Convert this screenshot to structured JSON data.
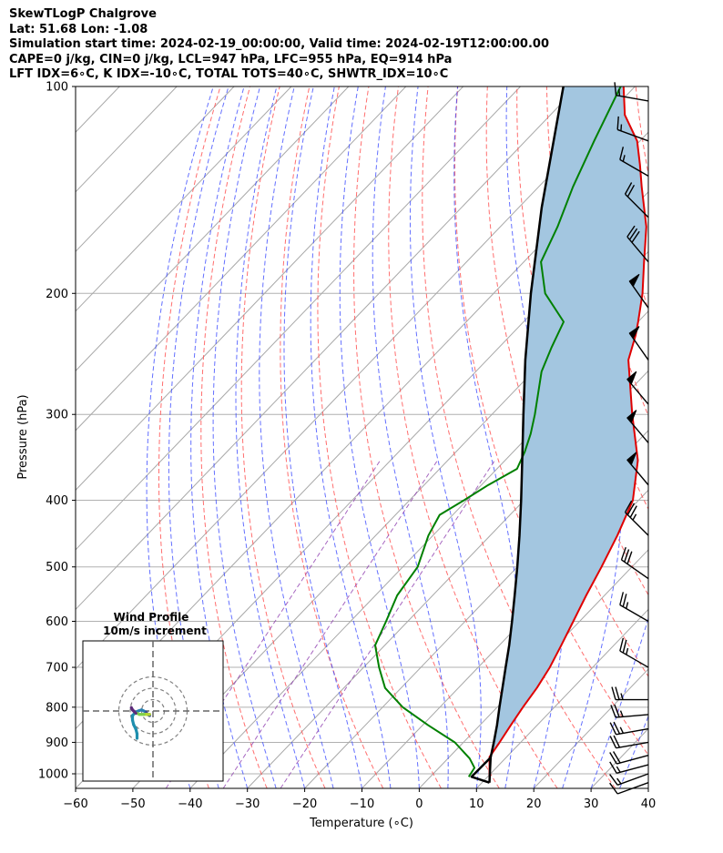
{
  "header": {
    "line1": "SkewTLogP Chalgrove",
    "line2": "Lat: 51.68   Lon: -1.08",
    "line3": "Simulation start time: 2024-02-19_00:00:00, Valid time: 2024-02-19T12:00:00.00",
    "line4": "CAPE=0 j/kg, CIN=0 j/kg, LCL=947 hPa, LFC=955 hPa, EQ=914 hPa",
    "line5": "LFT IDX=6∘C, K IDX=-10∘C, TOTAL TOTS=40∘C, SHWTR_IDX=10∘C"
  },
  "chart_data": [
    {
      "type": "skewt",
      "xlabel": "Temperature (∘C)",
      "ylabel": "Pressure (hPa)",
      "xlim": [
        -60,
        40
      ],
      "ylim": [
        1050,
        100
      ],
      "y_scale": "log",
      "x_ticks": [
        "−60",
        "−50",
        "−40",
        "−30",
        "−20",
        "−10",
        "0",
        "10",
        "20",
        "30",
        "40"
      ],
      "y_ticks": [
        "100",
        "200",
        "300",
        "400",
        "500",
        "600",
        "700",
        "800",
        "900",
        "1000"
      ],
      "grid": true,
      "series": [
        {
          "color": "#e00000",
          "points": [
            [
              1030,
              11.3
            ],
            [
              945,
              7.0
            ],
            [
              900,
              6.3
            ],
            [
              850,
              5.4
            ],
            [
              800,
              4.5
            ],
            [
              750,
              3.7
            ],
            [
              700,
              2.5
            ],
            [
              650,
              0.8
            ],
            [
              600,
              -1.1
            ],
            [
              550,
              -3.2
            ],
            [
              500,
              -5.3
            ],
            [
              450,
              -7.8
            ],
            [
              400,
              -11.0
            ],
            [
              350,
              -16.8
            ],
            [
              300,
              -25.5
            ],
            [
              250,
              -35.3
            ],
            [
              230,
              -38.2
            ],
            [
              220,
              -40.0
            ],
            [
              200,
              -44.0
            ],
            [
              180,
              -49.0
            ],
            [
              160,
              -54.5
            ],
            [
              140,
              -62.0
            ],
            [
              130,
              -66.0
            ],
            [
              120,
              -70.5
            ],
            [
              110,
              -77.0
            ],
            [
              100,
              -82.0
            ]
          ]
        },
        {
          "color": "#008000",
          "points": [
            [
              1010,
              6.7
            ],
            [
              980,
              6.2
            ],
            [
              950,
              3.8
            ],
            [
              900,
              -1.5
            ],
            [
              850,
              -9.0
            ],
            [
              800,
              -16.5
            ],
            [
              750,
              -22.8
            ],
            [
              700,
              -27.3
            ],
            [
              650,
              -31.7
            ],
            [
              600,
              -33.8
            ],
            [
              550,
              -36.2
            ],
            [
              500,
              -37.4
            ],
            [
              450,
              -40.8
            ],
            [
              420,
              -42.3
            ],
            [
              400,
              -40.5
            ],
            [
              380,
              -38.8
            ],
            [
              360,
              -36.5
            ],
            [
              340,
              -38.0
            ],
            [
              320,
              -40.0
            ],
            [
              300,
              -42.5
            ],
            [
              260,
              -48.5
            ],
            [
              240,
              -50.8
            ],
            [
              220,
              -53.0
            ],
            [
              200,
              -61.0
            ],
            [
              180,
              -67.0
            ],
            [
              160,
              -70.0
            ],
            [
              140,
              -74.0
            ],
            [
              120,
              -78.0
            ],
            [
              100,
              -82.5
            ]
          ]
        },
        {
          "color": "#000000",
          "points": [
            [
              1030,
              11.3
            ],
            [
              947,
              7.3
            ],
            [
              900,
              5.3
            ],
            [
              850,
              3.0
            ],
            [
              800,
              0.4
            ],
            [
              750,
              -2.3
            ],
            [
              700,
              -5.2
            ],
            [
              650,
              -8.3
            ],
            [
              600,
              -11.8
            ],
            [
              550,
              -15.7
            ],
            [
              500,
              -20.0
            ],
            [
              450,
              -24.9
            ],
            [
              400,
              -30.5
            ],
            [
              350,
              -37.0
            ],
            [
              300,
              -44.5
            ],
            [
              250,
              -53.3
            ],
            [
              200,
              -63.5
            ],
            [
              150,
              -76.0
            ],
            [
              100,
              -92.5
            ]
          ]
        },
        {
          "color": "#000000",
          "points": [
            [
              1030,
              11.3
            ],
            [
              1010,
              7.2
            ],
            [
              947,
              7.3
            ]
          ]
        }
      ],
      "wind_barbs": [
        {
          "pressure": 1030,
          "speed": 10,
          "direction": 250
        },
        {
          "pressure": 1000,
          "speed": 15,
          "direction": 250
        },
        {
          "pressure": 970,
          "speed": 15,
          "direction": 255
        },
        {
          "pressure": 940,
          "speed": 20,
          "direction": 255
        },
        {
          "pressure": 900,
          "speed": 20,
          "direction": 260
        },
        {
          "pressure": 860,
          "speed": 25,
          "direction": 260
        },
        {
          "pressure": 820,
          "speed": 25,
          "direction": 265
        },
        {
          "pressure": 780,
          "speed": 25,
          "direction": 270
        },
        {
          "pressure": 700,
          "speed": 25,
          "direction": 300
        },
        {
          "pressure": 600,
          "speed": 25,
          "direction": 300
        },
        {
          "pressure": 520,
          "speed": 30,
          "direction": 305
        },
        {
          "pressure": 450,
          "speed": 35,
          "direction": 315
        },
        {
          "pressure": 380,
          "speed": 50,
          "direction": 320
        },
        {
          "pressure": 330,
          "speed": 50,
          "direction": 320
        },
        {
          "pressure": 290,
          "speed": 50,
          "direction": 320
        },
        {
          "pressure": 250,
          "speed": 50,
          "direction": 325
        },
        {
          "pressure": 210,
          "speed": 50,
          "direction": 325
        },
        {
          "pressure": 180,
          "speed": 30,
          "direction": 320
        },
        {
          "pressure": 155,
          "speed": 20,
          "direction": 315
        },
        {
          "pressure": 135,
          "speed": 15,
          "direction": 300
        },
        {
          "pressure": 120,
          "speed": 15,
          "direction": 290
        },
        {
          "pressure": 105,
          "speed": 15,
          "direction": 280
        }
      ]
    },
    {
      "type": "hodograph",
      "title": "Wind Profile",
      "subtitle": "10m/s increment",
      "rings": [
        10,
        20,
        30
      ],
      "path": [
        [
          -14,
          -24
        ],
        [
          -14,
          -20
        ],
        [
          -15,
          -16
        ],
        [
          -17,
          -12
        ],
        [
          -18,
          -8
        ],
        [
          -18,
          -4
        ],
        [
          -15,
          -1
        ],
        [
          -13,
          0
        ],
        [
          -10,
          1
        ],
        [
          -8,
          0
        ],
        [
          -6,
          -1
        ],
        [
          -5,
          -3
        ],
        [
          -3,
          -4
        ],
        [
          -3,
          -3
        ],
        [
          -6,
          -3
        ],
        [
          -8,
          -3
        ],
        [
          -10,
          -3
        ],
        [
          -12,
          -3
        ],
        [
          -14,
          -2
        ],
        [
          -15,
          -2
        ],
        [
          -16,
          -1
        ],
        [
          -17,
          0
        ],
        [
          -18,
          1
        ],
        [
          -19,
          3
        ]
      ]
    }
  ]
}
